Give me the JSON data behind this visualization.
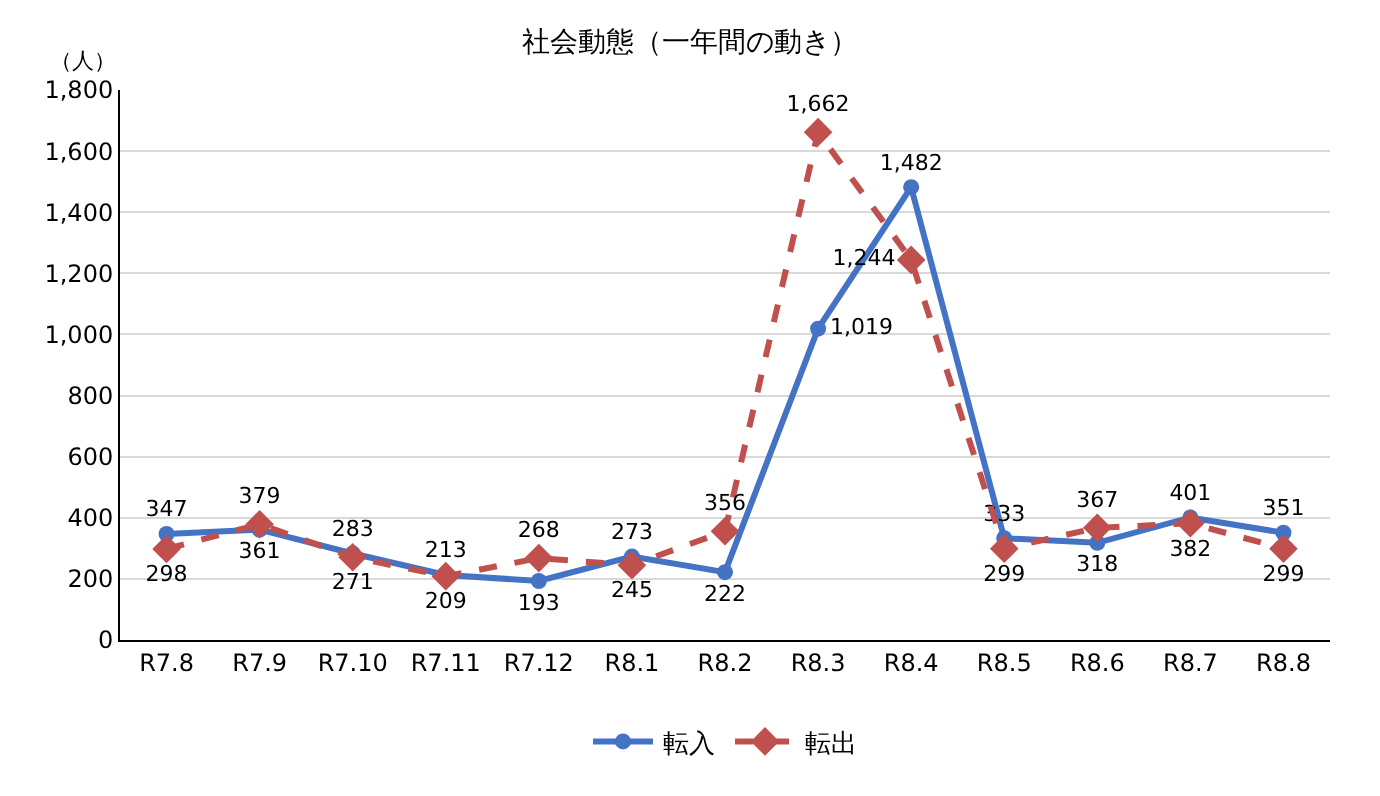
{
  "chart_data": {
    "type": "line",
    "title": "社会動態（一年間の動き）",
    "ylabel": "（人）",
    "categories": [
      "R7.8",
      "R7.9",
      "R7.10",
      "R7.11",
      "R7.12",
      "R8.1",
      "R8.2",
      "R8.3",
      "R8.4",
      "R8.5",
      "R8.6",
      "R8.7",
      "R8.8"
    ],
    "series": [
      {
        "name": "転入",
        "color": "#4472c4",
        "marker": "circle",
        "line_style": "solid",
        "values": [
          347,
          361,
          283,
          213,
          193,
          273,
          222,
          1019,
          1482,
          333,
          318,
          401,
          351
        ],
        "value_labels": [
          "347",
          "361",
          "283",
          "213",
          "193",
          "273",
          "222",
          "1,019",
          "1,482",
          "333",
          "318",
          "401",
          "351"
        ]
      },
      {
        "name": "転出",
        "color": "#c0504d",
        "marker": "diamond",
        "line_style": "dashed",
        "values": [
          298,
          379,
          271,
          209,
          268,
          245,
          356,
          1662,
          1244,
          299,
          367,
          382,
          299
        ],
        "value_labels": [
          "298",
          "379",
          "271",
          "209",
          "268",
          "245",
          "356",
          "1,662",
          "1,244",
          "299",
          "367",
          "382",
          "299"
        ]
      }
    ],
    "ylim": [
      0,
      1800
    ],
    "yticks": [
      0,
      {
        "value": 200,
        "label": "200"
      },
      {
        "value": 400,
        "label": "400"
      },
      {
        "value": 600,
        "label": "600"
      },
      {
        "value": 800,
        "label": "800"
      },
      {
        "value": 1000,
        "label": "1,000"
      },
      {
        "value": 1200,
        "label": "1,200"
      },
      {
        "value": 1400,
        "label": "1,400"
      },
      {
        "value": 1600,
        "label": "1,600"
      },
      {
        "value": 1800,
        "label": "1,800"
      }
    ],
    "grid": "y",
    "legend": "bottom"
  }
}
